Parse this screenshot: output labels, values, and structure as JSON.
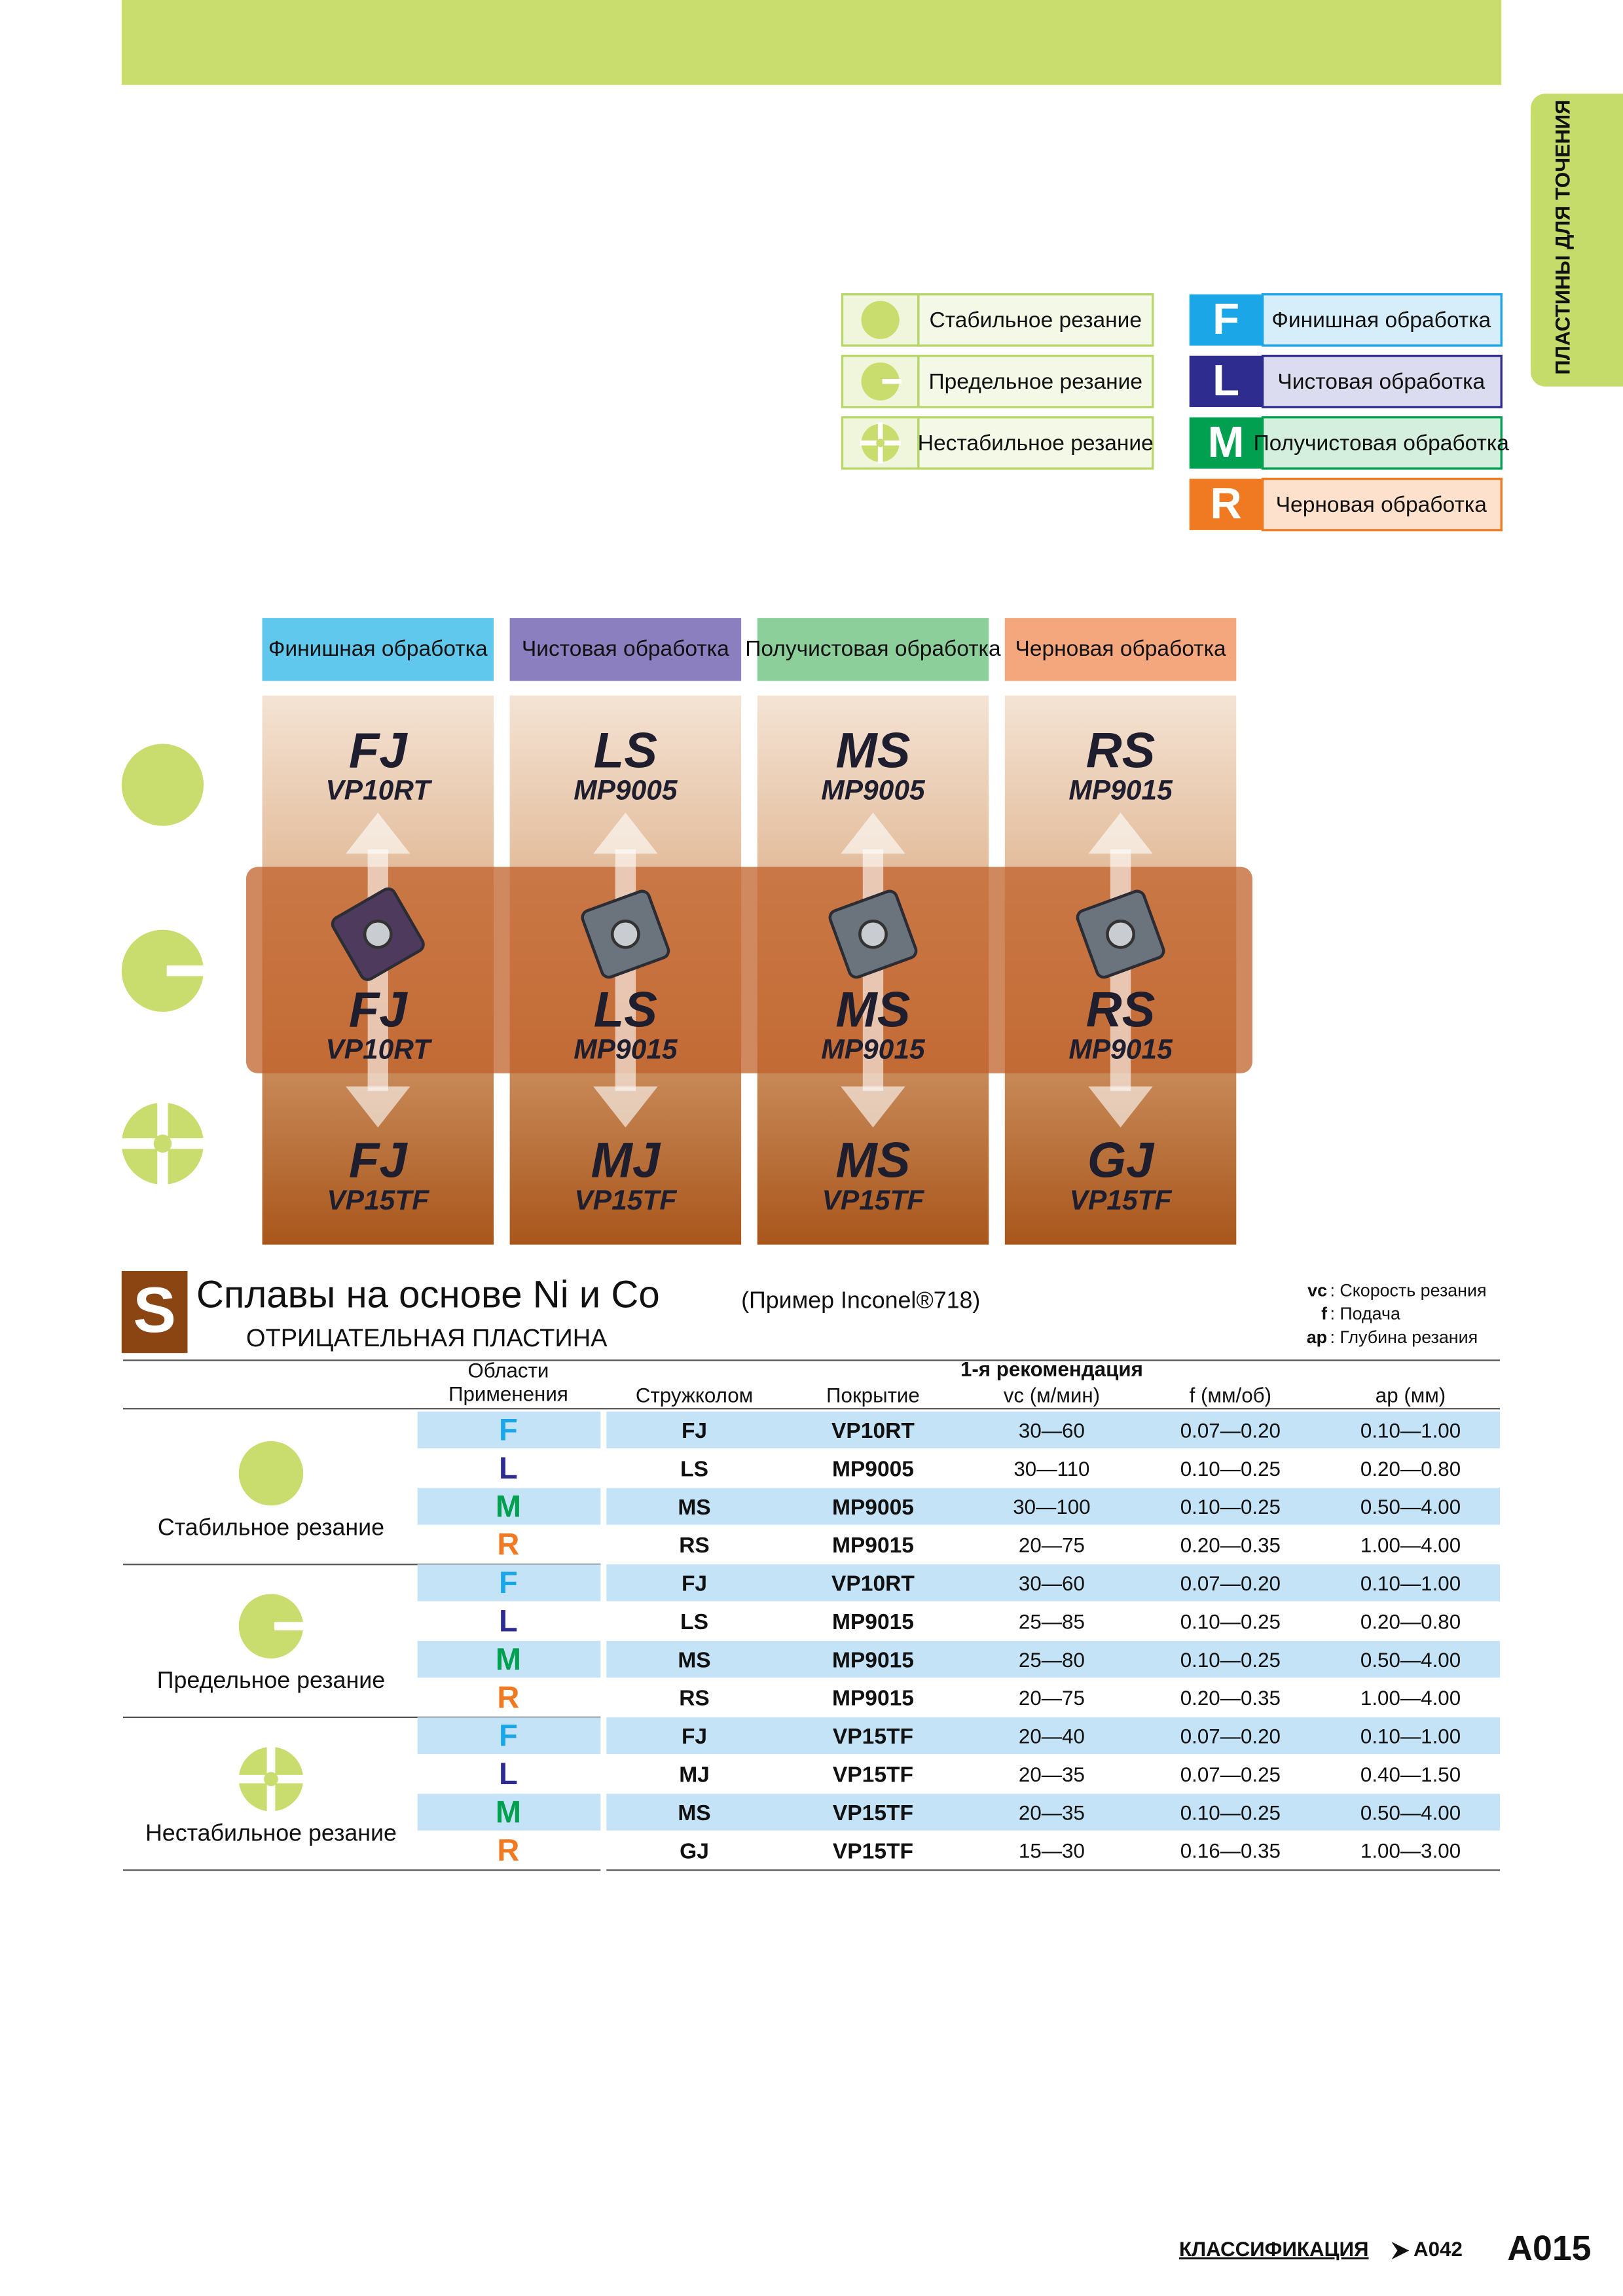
{
  "side_tab": "ПЛАСТИНЫ ДЛЯ ТОЧЕНИЯ",
  "legend_conditions": [
    "Стабильное резание",
    "Предельное резание",
    "Нестабильное резание"
  ],
  "legend_ops": [
    {
      "letter": "F",
      "label": "Финишная обработка",
      "color": "#1ba6e8",
      "light": "#d6eef9"
    },
    {
      "letter": "L",
      "label": "Чистовая обработка",
      "color": "#2e2d8f",
      "light": "#dcdcf0"
    },
    {
      "letter": "M",
      "label": "Получистовая обработка",
      "color": "#00a050",
      "light": "#d5efdf"
    },
    {
      "letter": "R",
      "label": "Черновая обработка",
      "color": "#f07a22",
      "light": "#fde1cc"
    }
  ],
  "grades_chart": {
    "headers": [
      {
        "label": "Финишная обработка",
        "color": "#5fc8ec"
      },
      {
        "label": "Чистовая обработка",
        "color": "#8c7fc0"
      },
      {
        "label": "Получистовая обработка",
        "color": "#8ccf9a"
      },
      {
        "label": "Черновая обработка",
        "color": "#f4a77c"
      }
    ],
    "columns": [
      {
        "top": {
          "chipbreaker": "FJ",
          "grade": "VP10RT"
        },
        "middle": {
          "chipbreaker": "FJ",
          "grade": "VP10RT"
        },
        "bottom": {
          "chipbreaker": "FJ",
          "grade": "VP15TF"
        }
      },
      {
        "top": {
          "chipbreaker": "LS",
          "grade": "MP9005"
        },
        "middle": {
          "chipbreaker": "LS",
          "grade": "MP9015"
        },
        "bottom": {
          "chipbreaker": "MJ",
          "grade": "VP15TF"
        }
      },
      {
        "top": {
          "chipbreaker": "MS",
          "grade": "MP9005"
        },
        "middle": {
          "chipbreaker": "MS",
          "grade": "MP9015"
        },
        "bottom": {
          "chipbreaker": "MS",
          "grade": "VP15TF"
        }
      },
      {
        "top": {
          "chipbreaker": "RS",
          "grade": "MP9015"
        },
        "middle": {
          "chipbreaker": "RS",
          "grade": "MP9015"
        },
        "bottom": {
          "chipbreaker": "GJ",
          "grade": "VP15TF"
        }
      }
    ]
  },
  "section": {
    "letter": "S",
    "title": "Сплавы на основе Ni и Co",
    "example": "(Пример Inconel®718)",
    "subtitle": "ОТРИЦАТЕЛЬНАЯ ПЛАСТИНА",
    "notes": [
      {
        "key": "vc",
        "text": ": Скорость резания"
      },
      {
        "key": "f",
        "text": ": Подача"
      },
      {
        "key": "ap",
        "text": ": Глубина резания"
      }
    ]
  },
  "table": {
    "header": {
      "application": [
        "Области",
        "Применения"
      ],
      "chipbreaker": "Стружколом",
      "coating": "Покрытие",
      "recommendation": "1-я рекомендация",
      "vc": "vc (м/мин)",
      "f": "f (мм/об)",
      "ap": "ap (мм)"
    },
    "groups": [
      {
        "condition": "Стабильное резание",
        "rows": [
          [
            "F",
            "FJ",
            "VP10RT",
            "30—60",
            "0.07—0.20",
            "0.10—1.00"
          ],
          [
            "L",
            "LS",
            "MP9005",
            "30—110",
            "0.10—0.25",
            "0.20—0.80"
          ],
          [
            "M",
            "MS",
            "MP9005",
            "30—100",
            "0.10—0.25",
            "0.50—4.00"
          ],
          [
            "R",
            "RS",
            "MP9015",
            "20—75",
            "0.20—0.35",
            "1.00—4.00"
          ]
        ]
      },
      {
        "condition": "Предельное резание",
        "rows": [
          [
            "F",
            "FJ",
            "VP10RT",
            "30—60",
            "0.07—0.20",
            "0.10—1.00"
          ],
          [
            "L",
            "LS",
            "MP9015",
            "25—85",
            "0.10—0.25",
            "0.20—0.80"
          ],
          [
            "M",
            "MS",
            "MP9015",
            "25—80",
            "0.10—0.25",
            "0.50—4.00"
          ],
          [
            "R",
            "RS",
            "MP9015",
            "20—75",
            "0.20—0.35",
            "1.00—4.00"
          ]
        ]
      },
      {
        "condition": "Нестабильное резание",
        "rows": [
          [
            "F",
            "FJ",
            "VP15TF",
            "20—40",
            "0.07—0.20",
            "0.10—1.00"
          ],
          [
            "L",
            "MJ",
            "VP15TF",
            "20—35",
            "0.07—0.25",
            "0.40—1.50"
          ],
          [
            "M",
            "MS",
            "VP15TF",
            "20—35",
            "0.10—0.25",
            "0.50—4.00"
          ],
          [
            "R",
            "GJ",
            "VP15TF",
            "15—30",
            "0.16—0.35",
            "1.00—3.00"
          ]
        ]
      }
    ]
  },
  "footer": {
    "link": "КЛАССИФИКАЦИЯ",
    "ref": "A042",
    "page": "A015"
  }
}
